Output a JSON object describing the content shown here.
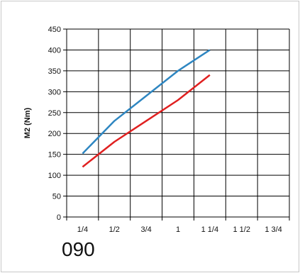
{
  "model_label": "090",
  "chart_data": {
    "type": "line",
    "title": "",
    "xlabel": "",
    "ylabel": "M2 (Nm)",
    "categories": [
      "1/4",
      "1/2",
      "3/4",
      "1",
      "1 1/4",
      "1 1/2",
      "1 3/4"
    ],
    "ylim": [
      0,
      450
    ],
    "yticks": [
      0,
      50,
      100,
      150,
      200,
      250,
      300,
      350,
      400,
      450
    ],
    "grid": true,
    "legend": "none",
    "series": [
      {
        "color": "#2e86c1",
        "x": [
          0.25,
          0.5,
          0.75,
          1.0,
          1.25
        ],
        "values": [
          152,
          230,
          290,
          350,
          400
        ]
      },
      {
        "color": "#e02020",
        "x": [
          0.25,
          0.5,
          0.75,
          1.0,
          1.25
        ],
        "values": [
          120,
          180,
          230,
          280,
          340
        ]
      }
    ]
  }
}
